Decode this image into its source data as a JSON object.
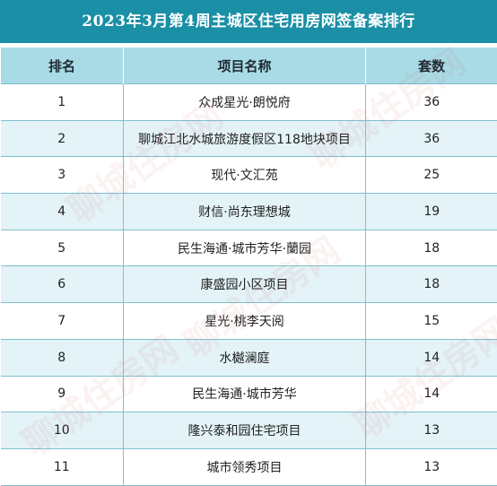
{
  "title": "2023年3月第4周主城区住宅用房网签备案排行",
  "columns": [
    "排名",
    "项目名称",
    "套数"
  ],
  "rows": [
    {
      "rank": "1",
      "name": "众成星光·朗悦府",
      "count": "36"
    },
    {
      "rank": "2",
      "name": "聊城江北水城旅游度假区118地块项目",
      "count": "36"
    },
    {
      "rank": "3",
      "name": "现代·文汇苑",
      "count": "25"
    },
    {
      "rank": "4",
      "name": "财信·尚东理想城",
      "count": "19"
    },
    {
      "rank": "5",
      "name": "民生海通·城市芳华·蘭园",
      "count": "18"
    },
    {
      "rank": "6",
      "name": "康盛园小区项目",
      "count": "18"
    },
    {
      "rank": "7",
      "name": "星光·桃李天阅",
      "count": "15"
    },
    {
      "rank": "8",
      "name": "水樾澜庭",
      "count": "14"
    },
    {
      "rank": "9",
      "name": "民生海通·城市芳华",
      "count": "14"
    },
    {
      "rank": "10",
      "name": "隆兴泰和园住宅项目",
      "count": "13"
    },
    {
      "rank": "11",
      "name": "城市领秀项目",
      "count": "13"
    }
  ],
  "watermark": "聊城住房网",
  "colors": {
    "title_bg": "#1a8fa6",
    "header_bg": "#a9dbe6",
    "alt_row_bg": "#e3f3f7",
    "border": "#7fbfd0"
  }
}
